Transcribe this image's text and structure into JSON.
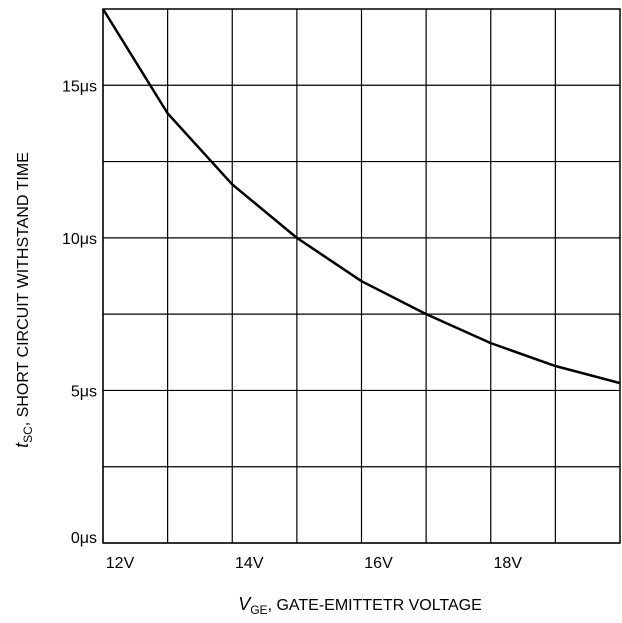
{
  "chart_data": {
    "type": "line",
    "x_label": {
      "symbol": "V",
      "subscript": "GE",
      "text": ", GATE-EMITTETR VOLTAGE"
    },
    "y_label": {
      "symbol": "t",
      "subscript": "SC",
      "text": ", SHORT CIRCUIT WITHSTAND TIME"
    },
    "x": [
      12,
      13,
      14,
      15,
      16,
      17,
      18,
      19,
      20
    ],
    "series": [
      {
        "name": null,
        "color": "#000000",
        "values": [
          17.5,
          14.08,
          11.75,
          10.0,
          8.58,
          7.5,
          6.55,
          5.8,
          5.24
        ]
      }
    ],
    "xlim": [
      12,
      20
    ],
    "ylim": [
      0,
      17.5
    ],
    "xticks": [
      {
        "value": 12,
        "label": "12V"
      },
      {
        "value": 14,
        "label": "14V"
      },
      {
        "value": 16,
        "label": "16V"
      },
      {
        "value": 18,
        "label": "18V"
      }
    ],
    "xminor": [
      13,
      15,
      17,
      19
    ],
    "yticks": [
      {
        "value": 0,
        "label": "0μs"
      },
      {
        "value": 5,
        "label": "5μs"
      },
      {
        "value": 10,
        "label": "10μs"
      },
      {
        "value": 15,
        "label": "15μs"
      }
    ],
    "yminor": [
      2.5,
      7.5,
      12.5
    ],
    "grid": true
  }
}
